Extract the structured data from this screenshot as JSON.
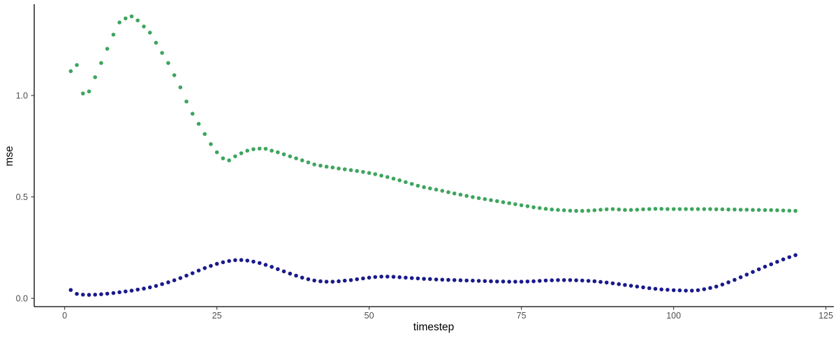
{
  "chart": {
    "xlabel": "timestep",
    "ylabel": "mse"
  },
  "chart_data": {
    "type": "scatter",
    "title": "",
    "xlabel": "timestep",
    "ylabel": "mse",
    "grid": false,
    "legend_position": "none",
    "background_color": "#ffffff",
    "axis_line_color": "#000000",
    "tick_color": "#333333",
    "tick_label_color": "#4d4d4d",
    "xlim": [
      -5.0,
      126.3
    ],
    "ylim": [
      -0.041,
      1.45
    ],
    "x_tick_values": [
      0,
      25,
      50,
      75,
      100,
      125
    ],
    "x_tick_labels": [
      "0",
      "25",
      "50",
      "75",
      "100",
      "125"
    ],
    "y_tick_values": [
      0.0,
      0.5,
      1.0
    ],
    "y_tick_labels": [
      "0.0",
      "0.5",
      "1.0"
    ],
    "x": [
      1,
      2,
      3,
      4,
      5,
      6,
      7,
      8,
      9,
      10,
      11,
      12,
      13,
      14,
      15,
      16,
      17,
      18,
      19,
      20,
      21,
      22,
      23,
      24,
      25,
      26,
      27,
      28,
      29,
      30,
      31,
      32,
      33,
      34,
      35,
      36,
      37,
      38,
      39,
      40,
      41,
      42,
      43,
      44,
      45,
      46,
      47,
      48,
      49,
      50,
      51,
      52,
      53,
      54,
      55,
      56,
      57,
      58,
      59,
      60,
      61,
      62,
      63,
      64,
      65,
      66,
      67,
      68,
      69,
      70,
      71,
      72,
      73,
      74,
      75,
      76,
      77,
      78,
      79,
      80,
      81,
      82,
      83,
      84,
      85,
      86,
      87,
      88,
      89,
      90,
      91,
      92,
      93,
      94,
      95,
      96,
      97,
      98,
      99,
      100,
      101,
      102,
      103,
      104,
      105,
      106,
      107,
      108,
      109,
      110,
      111,
      112,
      113,
      114,
      115,
      116,
      117,
      118,
      119,
      120
    ],
    "series": [
      {
        "name": "green-series",
        "color": "#3EA55E",
        "values": [
          1.12,
          1.15,
          1.01,
          1.02,
          1.09,
          1.16,
          1.23,
          1.3,
          1.36,
          1.38,
          1.39,
          1.37,
          1.34,
          1.31,
          1.26,
          1.21,
          1.16,
          1.1,
          1.04,
          0.97,
          0.91,
          0.86,
          0.81,
          0.76,
          0.72,
          0.69,
          0.68,
          0.7,
          0.715,
          0.728,
          0.735,
          0.738,
          0.737,
          0.728,
          0.72,
          0.71,
          0.7,
          0.69,
          0.68,
          0.67,
          0.66,
          0.654,
          0.649,
          0.645,
          0.64,
          0.636,
          0.632,
          0.628,
          0.623,
          0.618,
          0.612,
          0.605,
          0.598,
          0.59,
          0.582,
          0.573,
          0.564,
          0.555,
          0.548,
          0.542,
          0.536,
          0.53,
          0.523,
          0.517,
          0.511,
          0.505,
          0.499,
          0.494,
          0.489,
          0.484,
          0.479,
          0.474,
          0.469,
          0.464,
          0.459,
          0.454,
          0.449,
          0.445,
          0.441,
          0.438,
          0.436,
          0.434,
          0.432,
          0.431,
          0.431,
          0.432,
          0.434,
          0.437,
          0.439,
          0.44,
          0.438,
          0.436,
          0.436,
          0.437,
          0.439,
          0.44,
          0.441,
          0.441,
          0.44,
          0.44,
          0.44,
          0.44,
          0.44,
          0.44,
          0.44,
          0.44,
          0.439,
          0.439,
          0.438,
          0.438,
          0.437,
          0.437,
          0.436,
          0.436,
          0.435,
          0.435,
          0.434,
          0.433,
          0.432,
          0.431
        ]
      },
      {
        "name": "navy-series",
        "color": "#1A1A8C",
        "values": [
          0.041,
          0.022,
          0.018,
          0.017,
          0.018,
          0.02,
          0.023,
          0.026,
          0.03,
          0.034,
          0.038,
          0.043,
          0.048,
          0.054,
          0.061,
          0.07,
          0.079,
          0.089,
          0.1,
          0.112,
          0.124,
          0.137,
          0.149,
          0.16,
          0.17,
          0.178,
          0.184,
          0.188,
          0.189,
          0.186,
          0.181,
          0.174,
          0.165,
          0.155,
          0.144,
          0.133,
          0.122,
          0.112,
          0.102,
          0.094,
          0.088,
          0.084,
          0.082,
          0.082,
          0.084,
          0.087,
          0.09,
          0.094,
          0.098,
          0.102,
          0.105,
          0.107,
          0.107,
          0.106,
          0.104,
          0.102,
          0.1,
          0.098,
          0.096,
          0.095,
          0.093,
          0.092,
          0.091,
          0.09,
          0.089,
          0.088,
          0.087,
          0.086,
          0.085,
          0.084,
          0.083,
          0.083,
          0.082,
          0.082,
          0.082,
          0.083,
          0.084,
          0.086,
          0.088,
          0.089,
          0.09,
          0.09,
          0.09,
          0.089,
          0.088,
          0.086,
          0.084,
          0.081,
          0.078,
          0.074,
          0.07,
          0.066,
          0.062,
          0.058,
          0.054,
          0.05,
          0.047,
          0.044,
          0.042,
          0.04,
          0.039,
          0.038,
          0.038,
          0.04,
          0.045,
          0.051,
          0.058,
          0.068,
          0.079,
          0.091,
          0.104,
          0.117,
          0.13,
          0.143,
          0.156,
          0.168,
          0.18,
          0.192,
          0.203,
          0.213
        ]
      }
    ]
  }
}
